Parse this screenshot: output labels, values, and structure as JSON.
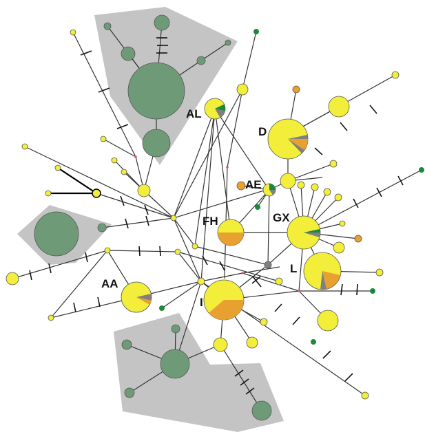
{
  "colors": {
    "yellow": "#f2ee3a",
    "orange": "#e8a030",
    "green": "#1a8a3a",
    "gray": "#808080",
    "cluster_fill": "#c4c4c4",
    "cluster_node": "#6e9a78",
    "median": "#e05070"
  },
  "labels": {
    "AL": "AL",
    "D": "D",
    "AE": "AE",
    "FH": "FH",
    "GX": "GX",
    "AA": "AA",
    "L": "L",
    "I": "I"
  }
}
